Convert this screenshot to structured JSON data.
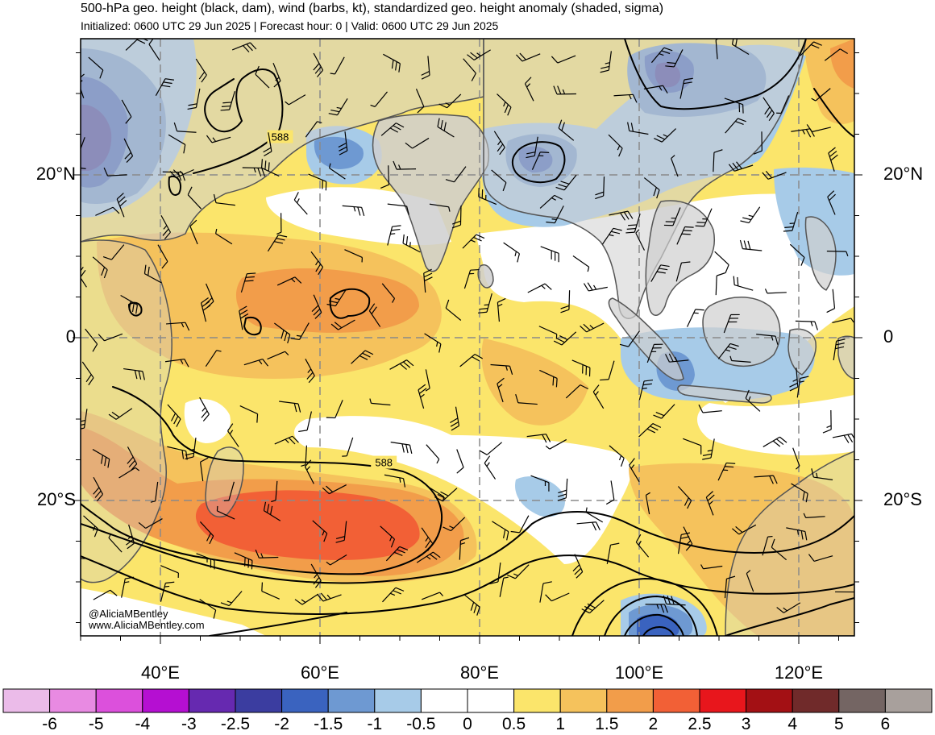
{
  "header": {
    "title": "500-hPa geo. height (black, dam), wind (barbs, kt), standardized geo. height anomaly (shaded, sigma)",
    "subtitle": "Initialized: 0600 UTC 29 Jun 2025 | Forecast hour: 0 | Valid: 0600 UTC 29 Jun 2025"
  },
  "map": {
    "lat_labels": [
      {
        "text": "20°N",
        "lat": 20
      },
      {
        "text": "0",
        "lat": 0
      },
      {
        "text": "20°S",
        "lat": -20
      }
    ],
    "lon_labels": [
      {
        "text": "40°E",
        "lon": 40
      },
      {
        "text": "60°E",
        "lon": 60
      },
      {
        "text": "80°E",
        "lon": 80
      },
      {
        "text": "100°E",
        "lon": 100
      },
      {
        "text": "120°E",
        "lon": 120
      }
    ],
    "contour_labels": [
      {
        "text": "588",
        "lon": 55,
        "lat": 24.5
      },
      {
        "text": "588",
        "lon": 68,
        "lat": -15.5
      }
    ],
    "colors": {
      "land": "#cfcfcf",
      "coast": "#555555",
      "grid": "#8a8a8a",
      "contour": "#000000"
    }
  },
  "credits": {
    "handle": "@AliciaMBentley",
    "url": "www.AliciaMBentley.com"
  },
  "colorbar": {
    "bins": [
      {
        "color": "#ebbbe9"
      },
      {
        "color": "#e88ae2"
      },
      {
        "color": "#dc50dc"
      },
      {
        "color": "#b50fd2"
      },
      {
        "color": "#6629b0"
      },
      {
        "color": "#3b3da0"
      },
      {
        "color": "#3a63bf"
      },
      {
        "color": "#6e99d2"
      },
      {
        "color": "#a7cbe8"
      },
      {
        "color": "#ffffff"
      },
      {
        "color": "#ffffff"
      },
      {
        "color": "#fbe56b"
      },
      {
        "color": "#f5c25c"
      },
      {
        "color": "#f29d4a"
      },
      {
        "color": "#f26036"
      },
      {
        "color": "#e8161c"
      },
      {
        "color": "#a31014"
      },
      {
        "color": "#702a2a"
      },
      {
        "color": "#746563"
      },
      {
        "color": "#a8a09c"
      }
    ],
    "labels": [
      "-6",
      "-5",
      "-4",
      "-3",
      "-2.5",
      "-2",
      "-1.5",
      "-1",
      "-0.5",
      "0",
      "0.5",
      "1",
      "1.5",
      "2",
      "2.5",
      "3",
      "4",
      "5",
      "6"
    ]
  }
}
